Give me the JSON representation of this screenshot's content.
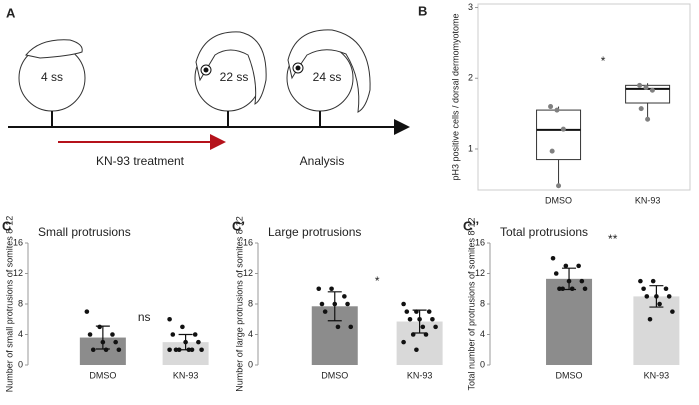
{
  "figure_a": {
    "label": "A",
    "stages": [
      "4 ss",
      "22 ss",
      "24 ss"
    ],
    "treatment": "KN-93 treatment",
    "analysis": "Analysis"
  },
  "chart_data": [
    {
      "type": "box",
      "label": "B",
      "ylabel": "pH3 positive cells / dorsal dermomyotome",
      "categories": [
        "DMSO",
        "KN-93"
      ],
      "annotation": "*",
      "ylim": [
        0.42,
        3.05
      ],
      "yticks": [
        1,
        2,
        3
      ],
      "color": "#808080",
      "boxes": [
        {
          "min": 0.48,
          "q1": 0.85,
          "median": 1.27,
          "q3": 1.55,
          "max": 1.6,
          "points": [
            1.6,
            1.55,
            1.28,
            0.97,
            0.48
          ]
        },
        {
          "min": 1.42,
          "q1": 1.65,
          "median": 1.85,
          "q3": 1.9,
          "max": 1.93,
          "points": [
            1.9,
            1.87,
            1.83,
            1.57,
            1.42
          ]
        }
      ]
    },
    {
      "type": "bar",
      "label": "C",
      "title": "Small protrusions",
      "ylabel": "Number of small protrusions of somites 8-12",
      "categories": [
        "DMSO",
        "KN-93"
      ],
      "annotation": "ns",
      "ylim": [
        0,
        16
      ],
      "yticks": [
        0,
        4,
        8,
        12,
        16
      ],
      "colors": [
        "#8c8c8c",
        "#d9d9d9"
      ],
      "values": [
        3.6,
        3.0
      ],
      "errors": [
        1.5,
        1.0
      ],
      "points": [
        [
          7,
          5,
          4,
          4,
          3,
          3,
          2,
          2,
          2
        ],
        [
          6,
          5,
          4,
          4,
          3,
          3,
          2,
          2,
          2,
          2,
          2,
          2
        ]
      ]
    },
    {
      "type": "bar",
      "label": "C’",
      "title": "Large protrusions",
      "ylabel": "Number of large protrusions of somites 8-12",
      "categories": [
        "DMSO",
        "KN-93"
      ],
      "annotation": "*",
      "ylim": [
        0,
        16
      ],
      "yticks": [
        0,
        4,
        8,
        12,
        16
      ],
      "colors": [
        "#8c8c8c",
        "#d9d9d9"
      ],
      "values": [
        7.7,
        5.7
      ],
      "errors": [
        1.9,
        1.5
      ],
      "points": [
        [
          10,
          10,
          9,
          8,
          8,
          8,
          7,
          5,
          5
        ],
        [
          8,
          7,
          7,
          7,
          6,
          6,
          6,
          5,
          5,
          4,
          4,
          3,
          2
        ]
      ]
    },
    {
      "type": "bar",
      "label": "C’’",
      "title": "Total protrusions",
      "ylabel": "Total number of  protrusions of somites 8-12",
      "categories": [
        "DMSO",
        "KN-93"
      ],
      "annotation": "**",
      "ylim": [
        0,
        16
      ],
      "yticks": [
        0,
        4,
        8,
        12,
        16
      ],
      "colors": [
        "#8c8c8c",
        "#d9d9d9"
      ],
      "values": [
        11.3,
        9.0
      ],
      "errors": [
        1.4,
        1.4
      ],
      "points": [
        [
          14,
          13,
          13,
          12,
          11,
          11,
          10,
          10,
          10,
          10
        ],
        [
          11,
          11,
          10,
          10,
          9,
          9,
          9,
          8,
          7,
          6
        ]
      ]
    }
  ]
}
